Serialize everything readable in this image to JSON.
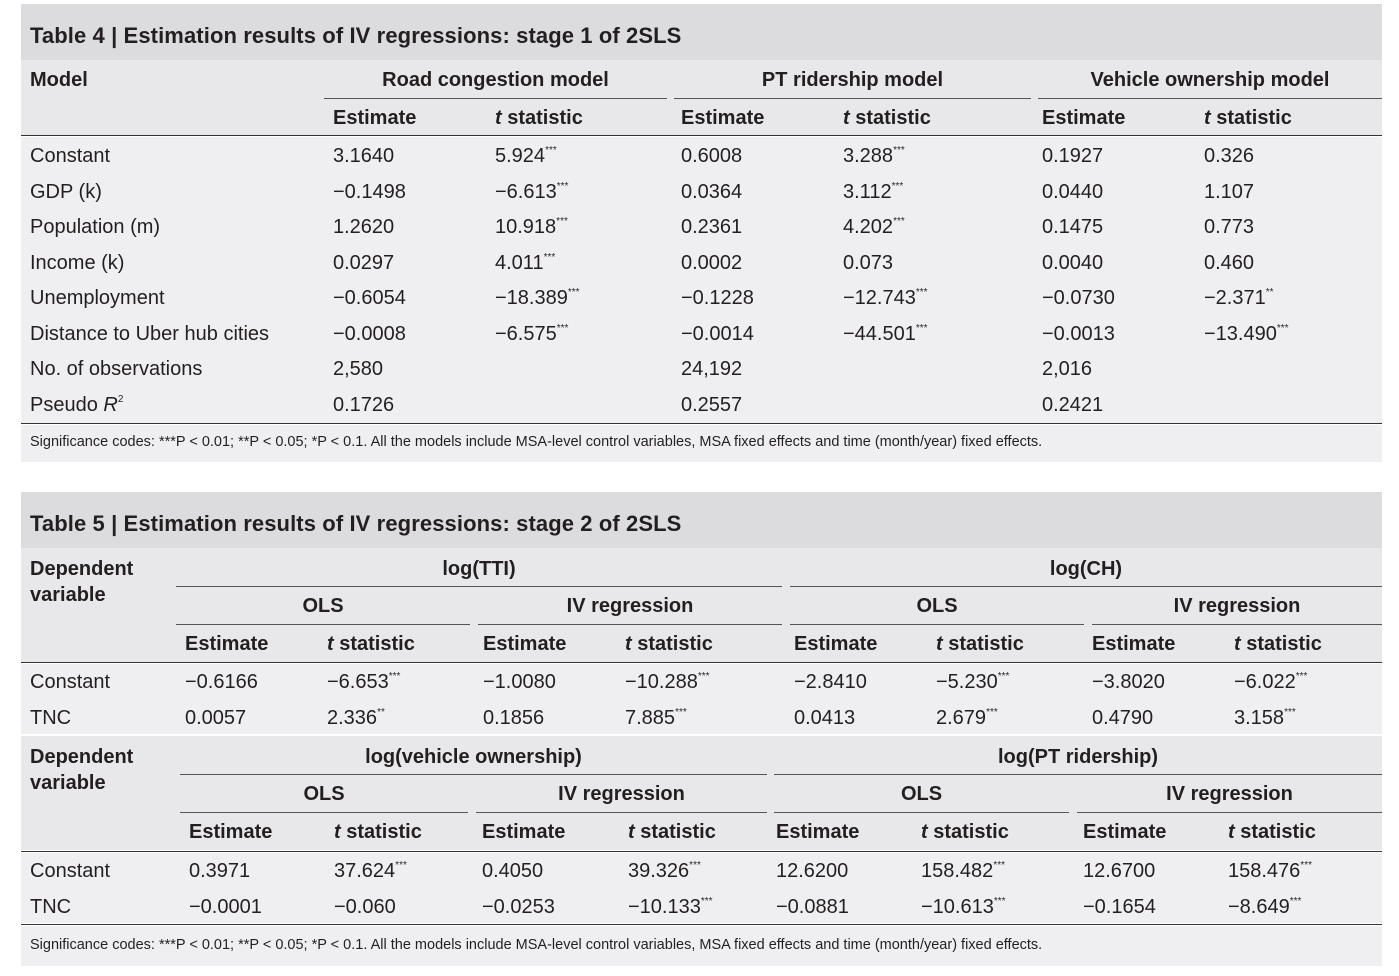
{
  "table4": {
    "title": "Table 4 | Estimation results of IV regressions: stage 1 of 2SLS",
    "model_label": "Model",
    "groups": [
      "Road congestion model",
      "PT ridership model",
      "Vehicle ownership model"
    ],
    "subheaders": {
      "estimate": "Estimate",
      "t_stat_t": "t",
      "t_stat_rest": " statistic"
    },
    "rows": [
      {
        "label": "Constant",
        "cells": [
          "3.1640",
          "5.924",
          "0.6008",
          "3.288",
          "0.1927",
          "0.326"
        ],
        "sig": [
          "",
          "***",
          "",
          "***",
          "",
          ""
        ]
      },
      {
        "label": "GDP (k)",
        "cells": [
          "−0.1498",
          "−6.613",
          "0.0364",
          "3.112",
          "0.0440",
          "1.107"
        ],
        "sig": [
          "",
          "***",
          "",
          "***",
          "",
          ""
        ]
      },
      {
        "label": "Population (m)",
        "cells": [
          "1.2620",
          "10.918",
          "0.2361",
          "4.202",
          "0.1475",
          "0.773"
        ],
        "sig": [
          "",
          "***",
          "",
          "***",
          "",
          ""
        ]
      },
      {
        "label": "Income (k)",
        "cells": [
          "0.0297",
          "4.011",
          "0.0002",
          "0.073",
          "0.0040",
          "0.460"
        ],
        "sig": [
          "",
          "***",
          "",
          "",
          "",
          ""
        ]
      },
      {
        "label": "Unemployment",
        "cells": [
          "−0.6054",
          "−18.389",
          "−0.1228",
          "−12.743",
          "−0.0730",
          "−2.371"
        ],
        "sig": [
          "",
          "***",
          "",
          "***",
          "",
          "**"
        ]
      },
      {
        "label": "Distance to Uber hub cities",
        "cells": [
          "−0.0008",
          "−6.575",
          "−0.0014",
          "−44.501",
          "−0.0013",
          "−13.490"
        ],
        "sig": [
          "",
          "***",
          "",
          "***",
          "",
          "***"
        ]
      },
      {
        "label": "No. of observations",
        "cells": [
          "2,580",
          "",
          "24,192",
          "",
          "2,016",
          ""
        ],
        "sig": [
          "",
          "",
          "",
          "",
          "",
          ""
        ]
      },
      {
        "label_main": "Pseudo ",
        "label_italic": "R",
        "label_sup": "2",
        "cells": [
          "0.1726",
          "",
          "0.2557",
          "",
          "0.2421",
          ""
        ],
        "sig": [
          "",
          "",
          "",
          "",
          "",
          ""
        ]
      }
    ],
    "note": "Significance codes: ***P < 0.01; **P < 0.05; *P < 0.1. All the models include MSA-level control variables, MSA fixed effects and time (month/year) fixed effects."
  },
  "table5": {
    "title": "Table 5 | Estimation results of IV regressions: stage 2 of 2SLS",
    "dep_label_1": "Dependent",
    "dep_label_2": "variable",
    "panel1": {
      "groups": [
        "log(TTI)",
        "log(CH)"
      ],
      "subgroups": [
        "OLS",
        "IV regression",
        "OLS",
        "IV regression"
      ],
      "rows": [
        {
          "label": "Constant",
          "cells": [
            "−0.6166",
            "−6.653",
            "−1.0080",
            "−10.288",
            "−2.8410",
            "−5.230",
            "−3.8020",
            "−6.022"
          ],
          "sig": [
            "",
            "***",
            "",
            "***",
            "",
            "***",
            "",
            "***"
          ]
        },
        {
          "label": "TNC",
          "cells": [
            "0.0057",
            "2.336",
            "0.1856",
            "7.885",
            "0.0413",
            "2.679",
            "0.4790",
            "3.158"
          ],
          "sig": [
            "",
            "**",
            "",
            "***",
            "",
            "***",
            "",
            "***"
          ]
        }
      ]
    },
    "panel2": {
      "groups": [
        "log(vehicle ownership)",
        "log(PT ridership)"
      ],
      "subgroups": [
        "OLS",
        "IV regression",
        "OLS",
        "IV regression"
      ],
      "rows": [
        {
          "label": "Constant",
          "cells": [
            "0.3971",
            "37.624",
            "0.4050",
            "39.326",
            "12.6200",
            "158.482",
            "12.6700",
            "158.476"
          ],
          "sig": [
            "",
            "***",
            "",
            "***",
            "",
            "***",
            "",
            "***"
          ]
        },
        {
          "label": "TNC",
          "cells": [
            "−0.0001",
            "−0.060",
            "−0.0253",
            "−10.133",
            "−0.0881",
            "−10.613",
            "−0.1654",
            "−8.649"
          ],
          "sig": [
            "",
            "",
            "",
            "***",
            "",
            "***",
            "",
            "***"
          ]
        }
      ]
    },
    "note": "Significance codes: ***P < 0.01; **P < 0.05; *P < 0.1. All the models include MSA-level control variables, MSA fixed effects and time (month/year) fixed effects."
  }
}
